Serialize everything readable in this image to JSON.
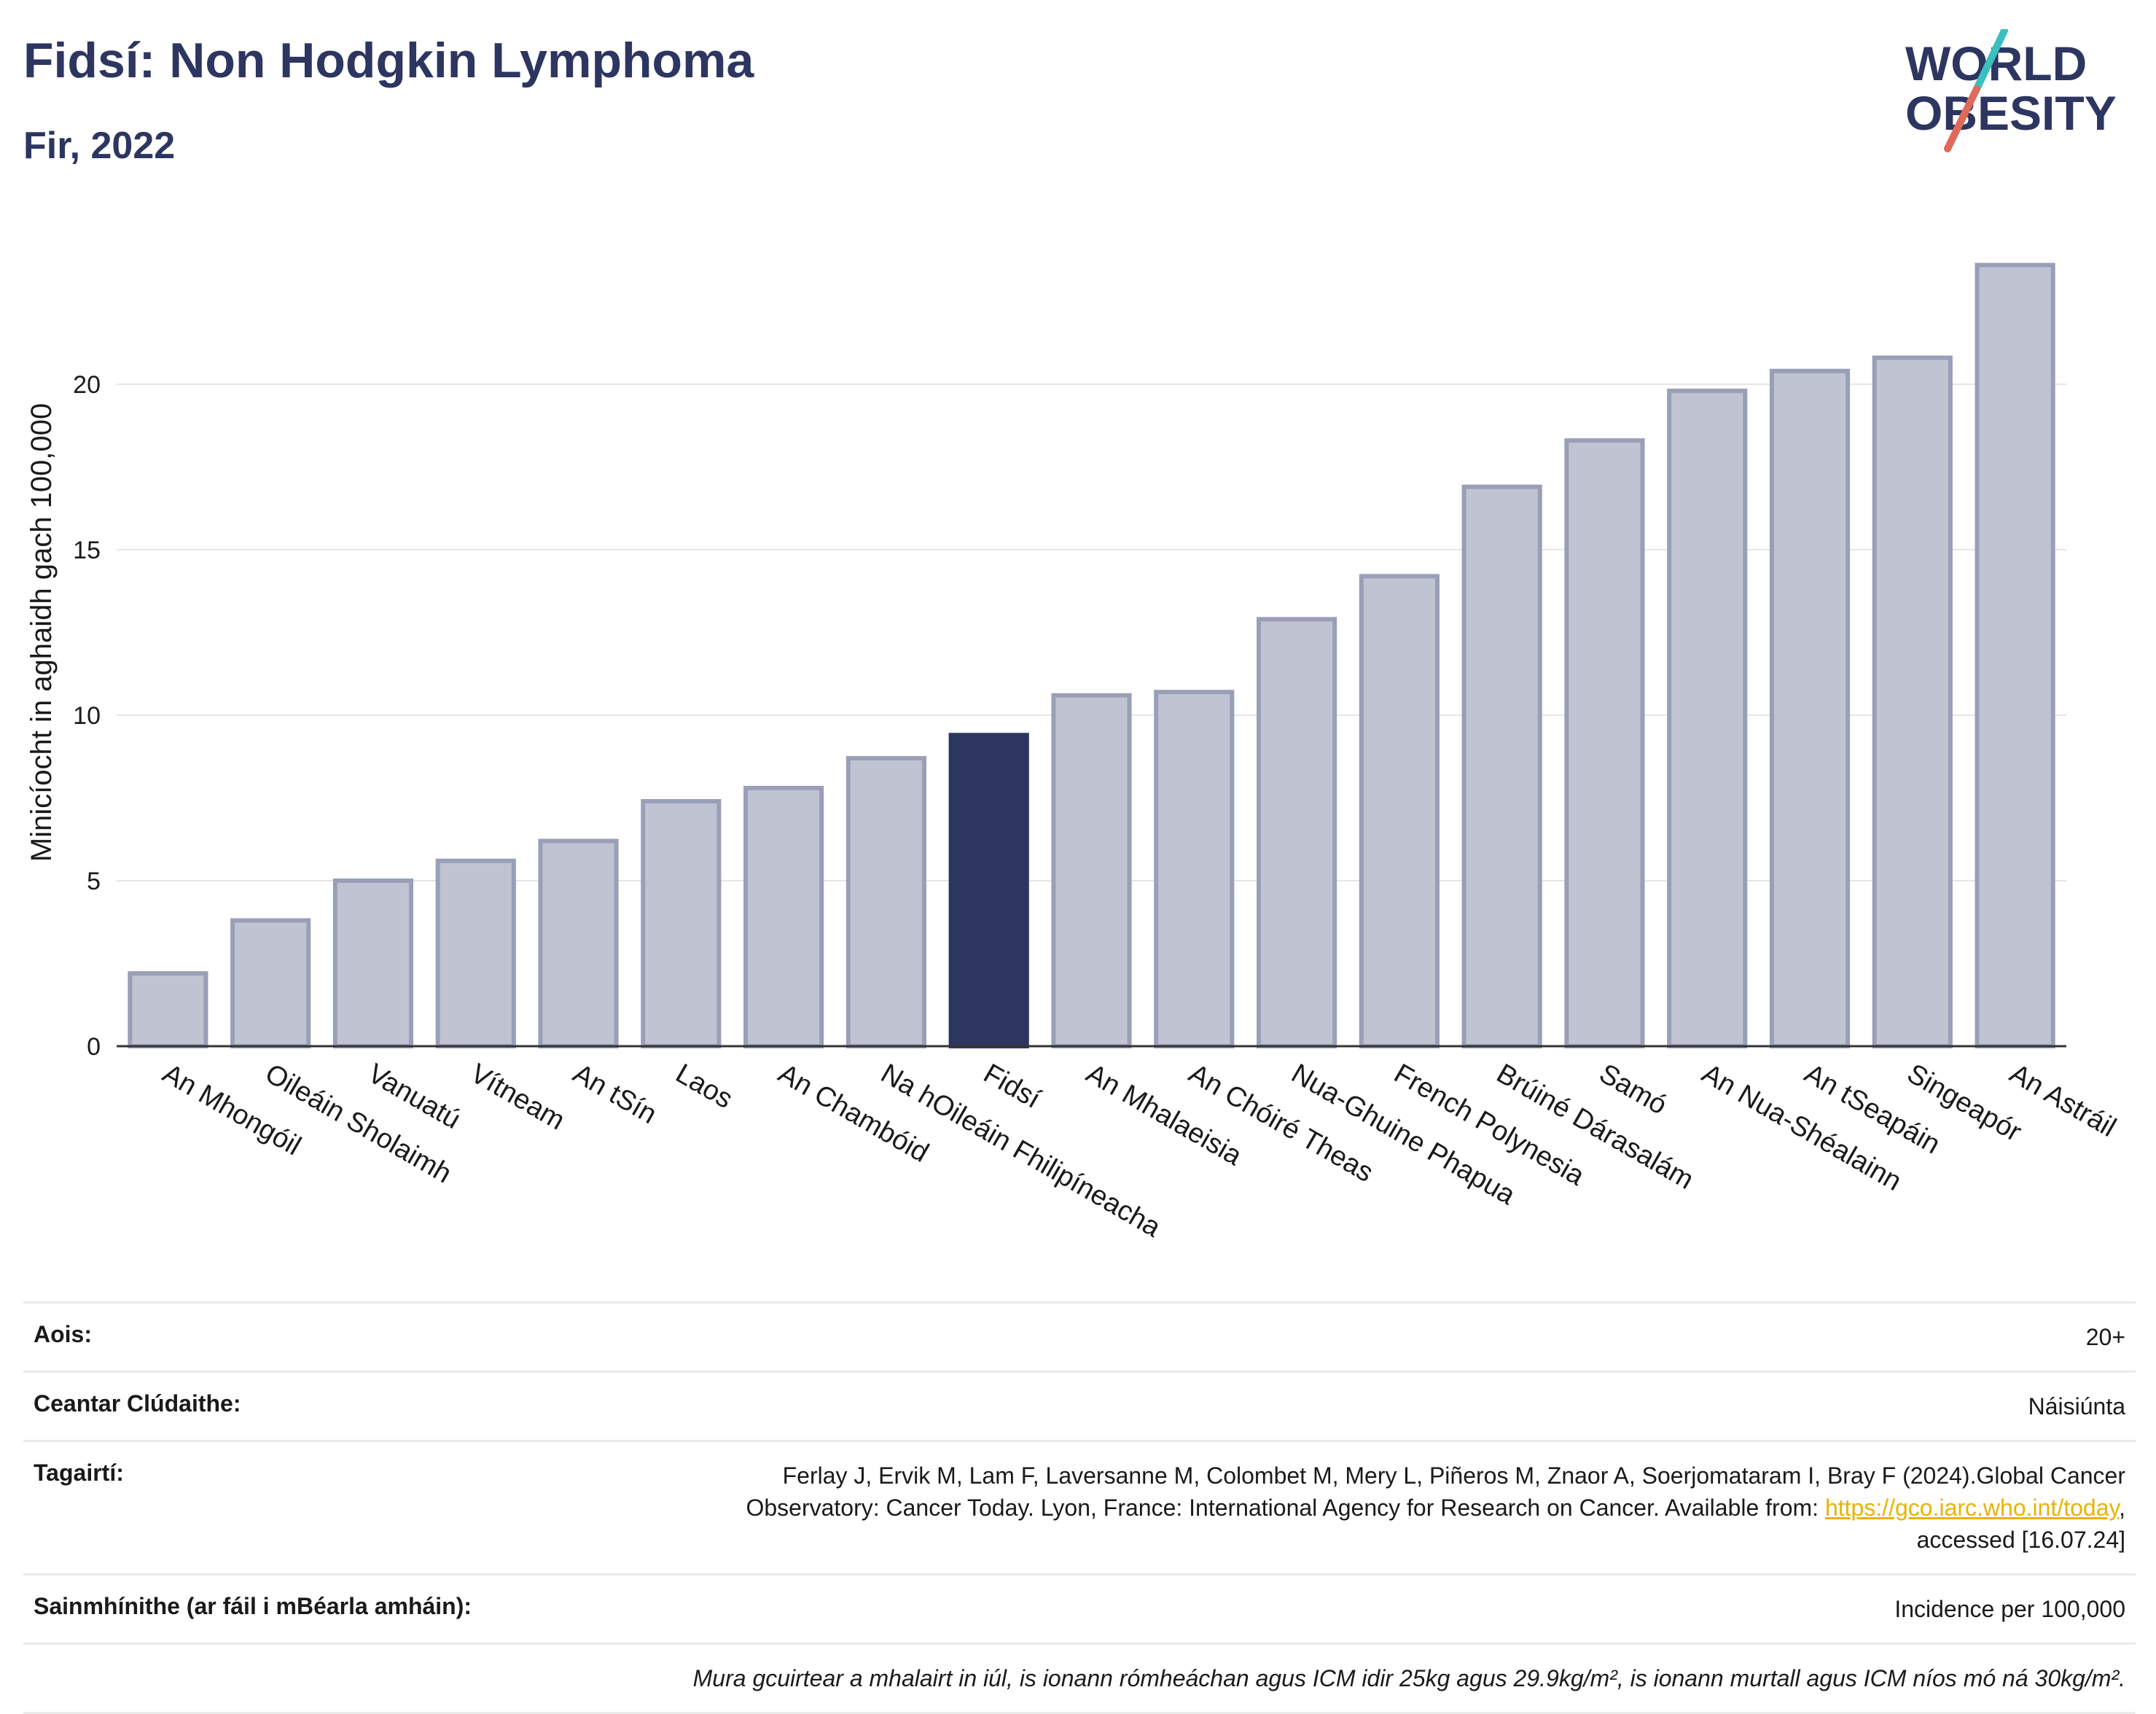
{
  "header": {
    "title": "Fidsí: Non Hodgkin Lymphoma",
    "subtitle": "Fir, 2022"
  },
  "logo": {
    "line1": "WORLD",
    "line2": "OBESITY",
    "icon": "world-obesity-logo"
  },
  "colors": {
    "bar": "#c0c3d1",
    "bar_edge": "#9a9fb8",
    "highlight": "#2d3561",
    "accent_teal": "#3bbfbf",
    "accent_red": "#e06a5a",
    "link": "#e8b400"
  },
  "chart_data": {
    "type": "bar",
    "categories": [
      "An Mhongóil",
      "Oileáin Sholaimh",
      "Vanuatú",
      "Vítneam",
      "An tSín",
      "Laos",
      "An Chambóid",
      "Na hOileáin Fhilipíneacha",
      "Fidsí",
      "An Mhalaeisia",
      "An Chóiré Theas",
      "Nua-Ghuine Phapua",
      "French Polynesia",
      "Brúiné Dárasalám",
      "Samó",
      "An Nua-Shéalainn",
      "An tSeapáin",
      "Singeapór",
      "An Astráil"
    ],
    "values": [
      2.2,
      3.8,
      5.0,
      5.6,
      6.2,
      7.4,
      7.8,
      8.7,
      9.4,
      10.6,
      10.7,
      12.9,
      14.2,
      16.9,
      18.3,
      19.8,
      20.4,
      20.8,
      23.6
    ],
    "highlight": "Fidsí",
    "ylabel": "Minicíocht in aghaidh gach 100,000",
    "ylim": [
      0,
      25
    ],
    "yticks": [
      0,
      5,
      10,
      15,
      20
    ],
    "grid": true
  },
  "info": {
    "age_label": "Aois:",
    "age_value": "20+",
    "area_label": "Ceantar Clúdaithe:",
    "area_value": "Náisiúnta",
    "ref_label": "Tagairtí:",
    "ref_text_1": "Ferlay J, Ervik M, Lam F, Laversanne M, Colombet M, Mery L, Piñeros M, Znaor A, Soerjomataram I, Bray F (2024).Global Cancer",
    "ref_text_2": "Observatory: Cancer Today. Lyon, France: International Agency for Research on Cancer. Available from: ",
    "ref_link": "https://gco.iarc.who.int/today",
    "ref_text_3": ",",
    "ref_text_4": "accessed [16.07.24]",
    "def_label": "Sainmhínithe (ar fáil i mBéarla amháin):",
    "def_value": "Incidence per 100,000",
    "note": "Mura gcuirtear a mhalairt in iúl, is ionann rómheáchan agus ICM idir 25kg agus 29.9kg/m², is ionann murtall agus ICM níos mó ná 30kg/m²."
  }
}
